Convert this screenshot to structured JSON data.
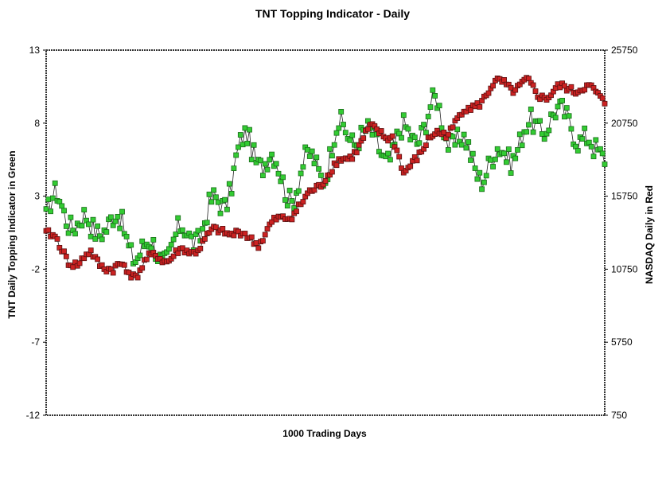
{
  "chart_data": {
    "type": "line",
    "title": "TNT Topping Indicator - Daily",
    "xlabel": "1000 Trading Days",
    "ylabel": "TNT Daily Topping Indicator in Green",
    "y2label": "NASDAQ Daily in Red",
    "ylim": [
      -12,
      13
    ],
    "y2lim": [
      750,
      25750
    ],
    "yticks": [
      "13",
      "8",
      "3",
      "-2",
      "-7",
      "-12"
    ],
    "y2ticks": [
      "25750",
      "20750",
      "15750",
      "10750",
      "5750",
      "750"
    ],
    "xlim": [
      0,
      1000
    ],
    "grid": false,
    "legend": "none",
    "marker": "square",
    "series": [
      {
        "axis": "left",
        "color": "#33cc33",
        "edge": "#1a6b1a",
        "x": [
          0,
          20,
          40,
          60,
          80,
          100,
          120,
          140,
          160,
          180,
          200,
          220,
          240,
          260,
          280,
          300,
          320,
          340,
          360,
          380,
          400,
          420,
          440,
          460,
          480,
          500,
          520,
          540,
          560,
          580,
          600,
          620,
          640,
          660,
          680,
          700,
          720,
          740,
          760,
          780,
          800,
          820,
          840,
          860,
          880,
          900,
          920,
          940,
          960,
          980,
          1000
        ],
        "values": [
          1.5,
          2.5,
          2.0,
          1.0,
          0.5,
          1.5,
          1.0,
          0.5,
          -0.5,
          -1.0,
          -0.8,
          -0.5,
          0.0,
          0.5,
          1.0,
          2.0,
          3.0,
          5.5,
          6.5,
          6.0,
          5.5,
          4.0,
          3.5,
          4.5,
          5.5,
          5.0,
          7.0,
          7.5,
          7.5,
          6.5,
          6.5,
          6.0,
          7.0,
          7.5,
          8.0,
          9.0,
          7.5,
          6.5,
          5.5,
          5.0,
          5.0,
          6.0,
          6.5,
          7.0,
          8.0,
          8.5,
          8.0,
          8.5,
          7.0,
          5.5,
          6.5
        ]
      },
      {
        "axis": "right",
        "color": "#cc2222",
        "edge": "#5a1010",
        "x": [
          0,
          20,
          40,
          60,
          80,
          100,
          120,
          140,
          160,
          180,
          200,
          220,
          240,
          260,
          280,
          300,
          320,
          340,
          360,
          380,
          400,
          420,
          440,
          460,
          480,
          500,
          520,
          540,
          560,
          580,
          600,
          620,
          640,
          660,
          680,
          700,
          720,
          740,
          760,
          780,
          800,
          820,
          840,
          860,
          880,
          900,
          920,
          940,
          960,
          980,
          1000
        ],
        "values": [
          13200,
          12500,
          11500,
          11000,
          11800,
          11200,
          10500,
          11000,
          10400,
          11200,
          11700,
          11500,
          11800,
          12000,
          12600,
          13200,
          13500,
          13200,
          12800,
          12700,
          13600,
          14100,
          14700,
          15200,
          16200,
          17200,
          17800,
          18400,
          19300,
          20200,
          20200,
          19800,
          17000,
          18500,
          19300,
          19900,
          20300,
          21200,
          21700,
          22500,
          23200,
          23500,
          23200,
          23400,
          22800,
          22700,
          23000,
          23200,
          23200,
          22800,
          22400
        ]
      }
    ]
  }
}
